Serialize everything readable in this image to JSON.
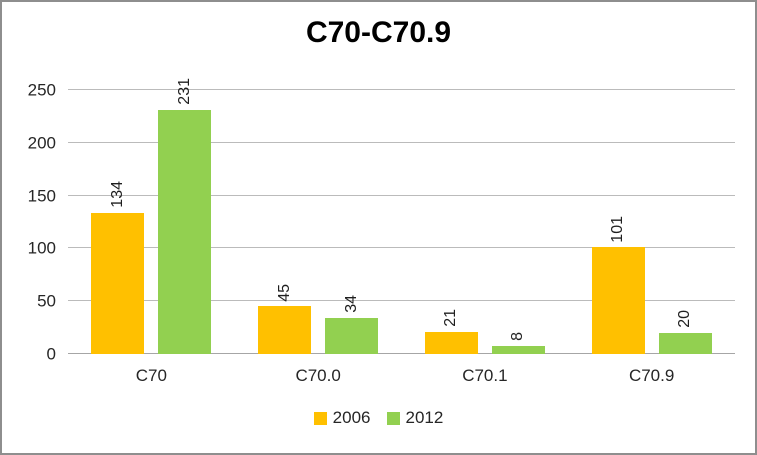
{
  "chart_data": {
    "type": "bar",
    "title": "C70-C70.9",
    "categories": [
      "C70",
      "C70.0",
      "C70.1",
      "C70.9"
    ],
    "series": [
      {
        "name": "2006",
        "color": "#FFC000",
        "values": [
          134,
          45,
          21,
          101
        ]
      },
      {
        "name": "2012",
        "color": "#92D050",
        "values": [
          231,
          34,
          8,
          20
        ]
      }
    ],
    "ylim": [
      0,
      250
    ],
    "yticks": [
      0,
      50,
      100,
      150,
      200,
      250
    ],
    "grid": "horizontal",
    "legend_position": "bottom",
    "data_labels": "rotated-vertical-above-bars"
  },
  "style": {
    "background": "#FFFFFF",
    "border_color": "#8E8E8E",
    "gridline_color": "#BBBBBB",
    "axis_line_color": "#A6A6A6",
    "text_color": "#262626",
    "title_color": "#000000"
  }
}
